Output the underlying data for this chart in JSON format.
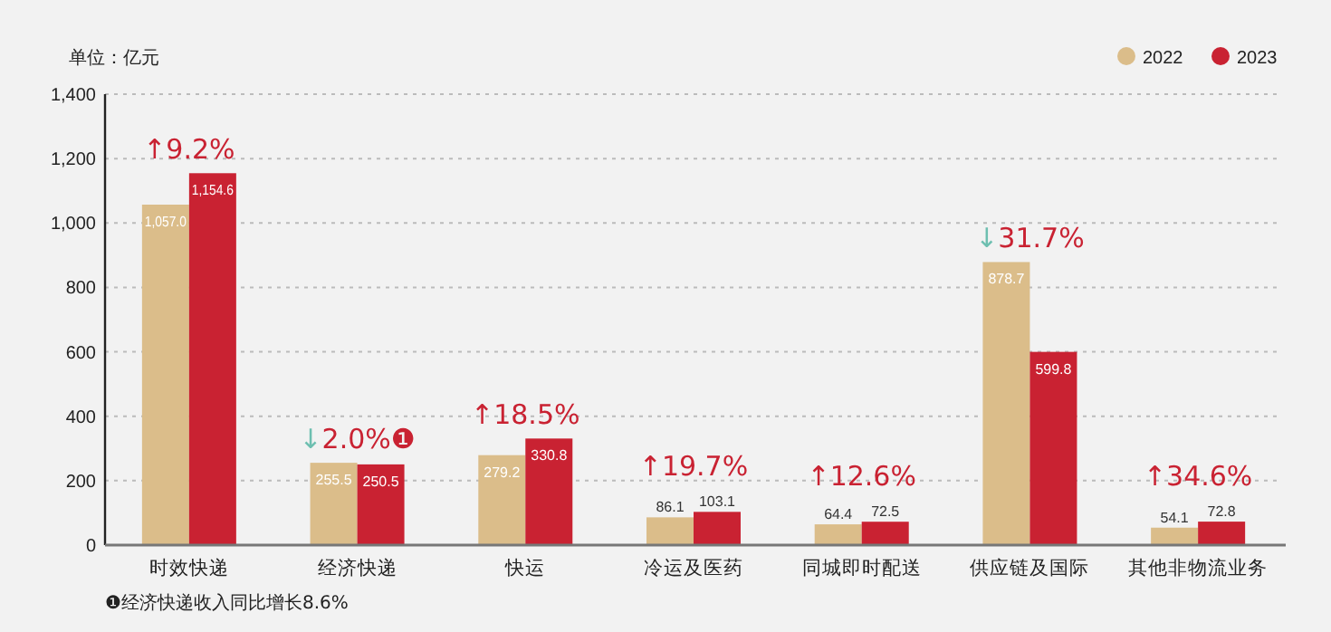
{
  "chart_data": {
    "type": "bar",
    "ylabel": "单位：亿元",
    "categories": [
      "时效快递",
      "经济快递",
      "快运",
      "冷运及医药",
      "同城即时配送",
      "供应链及国际",
      "其他非物流业务"
    ],
    "series": [
      {
        "name": "2022",
        "color": "#dbbd8a",
        "values": [
          1057.0,
          255.5,
          279.2,
          86.1,
          64.4,
          878.7,
          54.1
        ],
        "value_labels": [
          "1,057.0",
          "255.5",
          "279.2",
          "86.1",
          "64.4",
          "878.7",
          "54.1"
        ]
      },
      {
        "name": "2023",
        "color": "#c92232",
        "values": [
          1154.6,
          250.5,
          330.8,
          103.1,
          72.5,
          599.8,
          72.8
        ],
        "value_labels": [
          "1,154.6",
          "250.5",
          "330.8",
          "103.1",
          "72.5",
          "599.8",
          "72.8"
        ]
      }
    ],
    "ylim": [
      0,
      1400
    ],
    "yticks": [
      0,
      200,
      400,
      600,
      800,
      {
        "value": 1000,
        "label": "1,000"
      },
      {
        "value": 1200,
        "label": "1,200"
      },
      {
        "value": 1400,
        "label": "1,400"
      }
    ],
    "grid": "y",
    "legend": "top right",
    "annotations": [
      "↑9.2%",
      "↓2.0%❶",
      "↑18.5%",
      "↑19.7%",
      "↑12.6%",
      "↓31.7%",
      "↑34.6%",
      "❶经济快递收入同比增长8.6%"
    ]
  }
}
